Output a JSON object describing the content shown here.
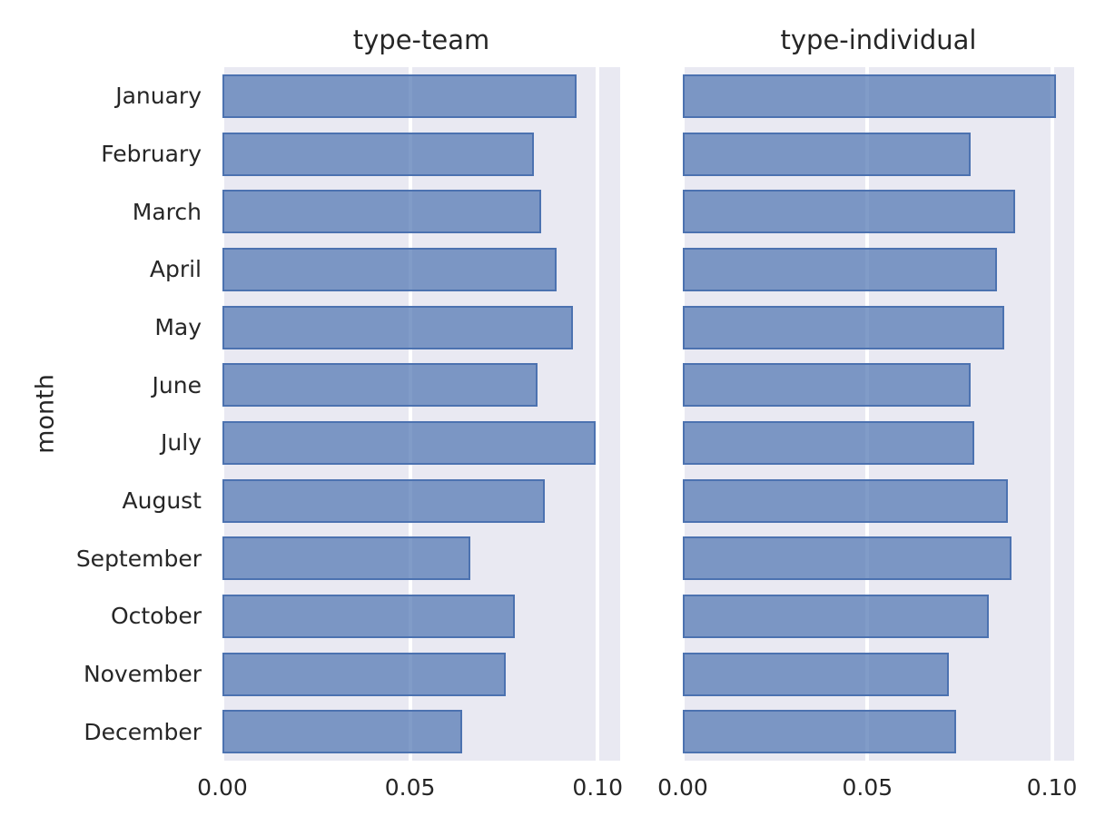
{
  "chart_data": {
    "type": "bar",
    "orientation": "horizontal",
    "title": "",
    "xlabel": "",
    "ylabel": "month",
    "categories": [
      "January",
      "February",
      "March",
      "April",
      "May",
      "June",
      "July",
      "August",
      "September",
      "October",
      "November",
      "December"
    ],
    "facets": [
      {
        "title": "type-team",
        "values": [
          0.0945,
          0.083,
          0.085,
          0.089,
          0.0935,
          0.084,
          0.0995,
          0.086,
          0.066,
          0.078,
          0.0755,
          0.064
        ]
      },
      {
        "title": "type-individual",
        "values": [
          0.101,
          0.078,
          0.09,
          0.085,
          0.087,
          0.078,
          0.079,
          0.088,
          0.089,
          0.083,
          0.072,
          0.074
        ]
      }
    ],
    "xticks": [
      0.0,
      0.05,
      0.1
    ],
    "xtick_labels": [
      "0.00",
      "0.05",
      "0.10"
    ],
    "xlim": [
      0,
      0.106
    ],
    "grid": true,
    "legend": false,
    "colors": {
      "bar_fill": "rgba(76,114,176,0.70)",
      "bar_edge": "#4c72b0",
      "panel_bg": "#e9e9f2",
      "gridline": "#ffffff",
      "text": "#262626",
      "figure_bg": "#ffffff"
    }
  }
}
